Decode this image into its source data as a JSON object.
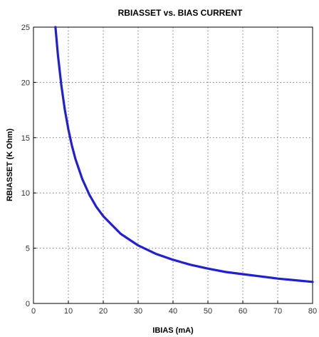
{
  "chart_data": {
    "type": "line",
    "title": "RBIASSET vs. BIAS CURRENT",
    "xlabel": "IBIAS (mA)",
    "ylabel": "RBIASSET (K Ohm)",
    "xlim": [
      0,
      80
    ],
    "ylim": [
      0,
      25
    ],
    "xticks": [
      0,
      10,
      20,
      30,
      40,
      50,
      60,
      70,
      80
    ],
    "yticks": [
      0,
      5,
      10,
      15,
      20,
      25
    ],
    "grid": true,
    "line_color": "#1f1fd6",
    "series": [
      {
        "x": [
          6.3,
          7,
          8,
          9,
          10,
          11,
          12,
          14,
          16,
          18,
          20,
          25,
          30,
          35,
          40,
          45,
          50,
          55,
          60,
          65,
          70,
          75,
          80
        ],
        "values": [
          25.0,
          22.5,
          19.7,
          17.5,
          15.75,
          14.3,
          13.1,
          11.25,
          9.85,
          8.75,
          7.9,
          6.3,
          5.25,
          4.5,
          3.95,
          3.5,
          3.15,
          2.85,
          2.65,
          2.45,
          2.25,
          2.1,
          1.95
        ]
      }
    ]
  }
}
